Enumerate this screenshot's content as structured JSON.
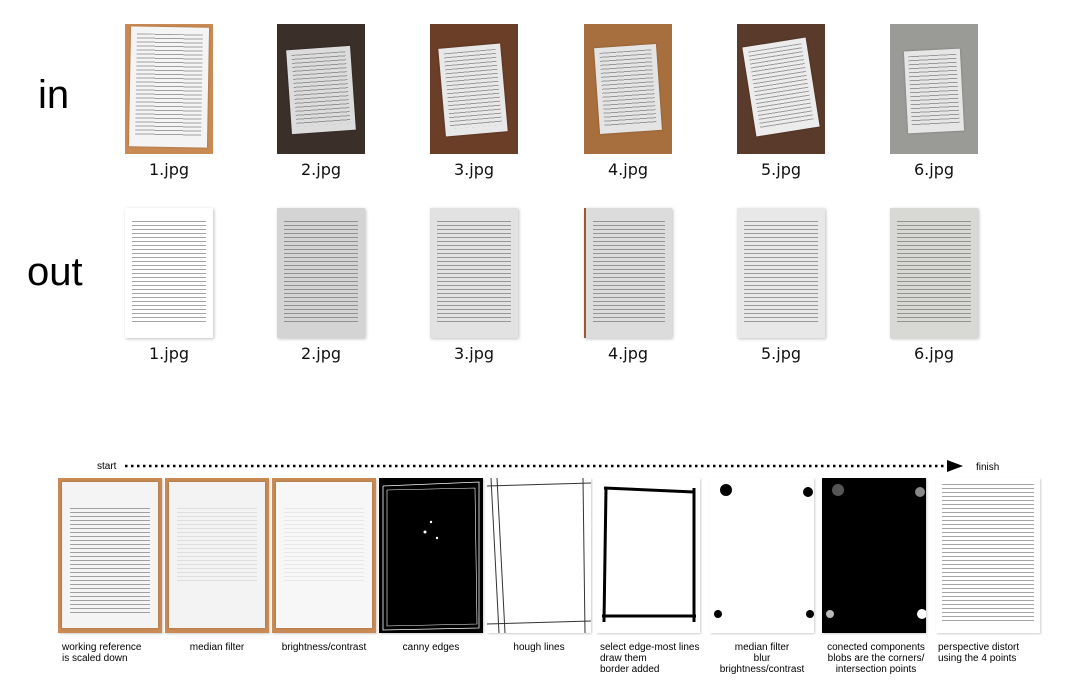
{
  "rows": {
    "in_label": "in",
    "out_label": "out"
  },
  "inputs": [
    {
      "filename": "1.jpg"
    },
    {
      "filename": "2.jpg"
    },
    {
      "filename": "3.jpg"
    },
    {
      "filename": "4.jpg"
    },
    {
      "filename": "5.jpg"
    },
    {
      "filename": "6.jpg"
    }
  ],
  "outputs": [
    {
      "filename": "1.jpg"
    },
    {
      "filename": "2.jpg"
    },
    {
      "filename": "3.jpg"
    },
    {
      "filename": "4.jpg"
    },
    {
      "filename": "5.jpg"
    },
    {
      "filename": "6.jpg"
    }
  ],
  "pipeline": {
    "start_label": "start",
    "finish_label": "finish",
    "steps": [
      {
        "caption": "working reference\nis scaled down"
      },
      {
        "caption": "median filter"
      },
      {
        "caption": "brightness/contrast"
      },
      {
        "caption": "canny edges"
      },
      {
        "caption": "hough lines"
      },
      {
        "caption": "select edge-most lines\ndraw them\nborder added"
      },
      {
        "caption": "median filter\nblur\nbrightness/contrast"
      },
      {
        "caption": "conected components\nblobs are the corners/\nintersection points"
      },
      {
        "caption": "perspective distort\nusing the 4 points"
      }
    ]
  },
  "colors": {
    "wood_light": "#c9874f",
    "wood_dark": "#3a2a22",
    "wood_mid": "#7a4a2c",
    "metal": "#9a9a96",
    "paper": "#f4f4f4"
  }
}
